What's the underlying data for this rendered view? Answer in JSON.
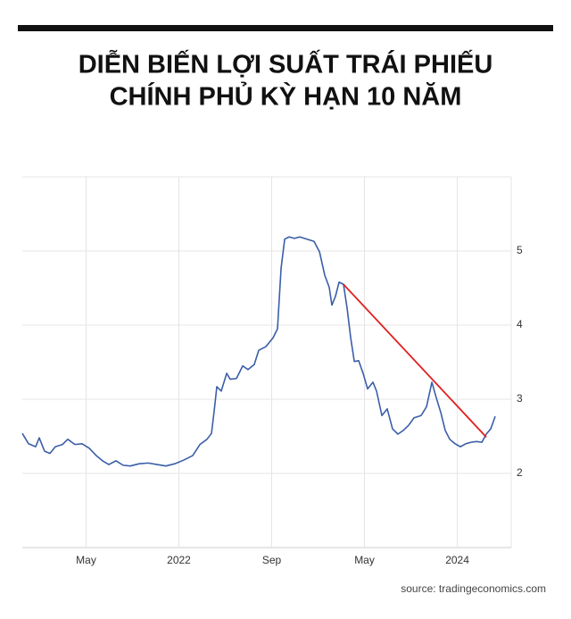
{
  "chart_data": {
    "type": "line",
    "title": [
      "DIỄN BIẾN LỢI SUẤT TRÁI PHIẾU",
      "CHÍNH PHỦ KỲ HẠN 10 NĂM"
    ],
    "source": "source: tradingeconomics.com",
    "x": [
      0.0,
      0.54,
      1.15,
      1.46,
      1.92,
      2.38,
      2.85,
      3.46,
      3.92,
      4.54,
      5.15,
      5.77,
      6.38,
      6.92,
      7.46,
      8.08,
      8.69,
      9.31,
      10.08,
      10.85,
      11.62,
      12.38,
      13.15,
      13.92,
      14.69,
      15.31,
      15.92,
      16.31,
      16.54,
      16.77,
      17.15,
      17.62,
      17.92,
      18.46,
      19.0,
      19.46,
      20.0,
      20.38,
      21.0,
      21.62,
      22.0,
      22.31,
      22.62,
      23.0,
      23.46,
      23.92,
      24.54,
      25.15,
      25.62,
      26.08,
      26.46,
      26.69,
      27.0,
      27.31,
      27.69,
      28.0,
      28.31,
      28.62,
      29.0,
      29.38,
      29.77,
      30.23,
      30.54,
      31.0,
      31.46,
      31.92,
      32.38,
      32.85,
      33.31,
      33.77,
      34.38,
      34.85,
      35.31,
      35.69,
      36.08,
      36.46,
      36.85,
      37.31,
      37.77,
      38.23,
      38.69,
      39.15,
      39.62,
      40.0,
      40.38,
      40.77
    ],
    "series": [
      {
        "color": "#3a5ea8",
        "values": [
          2.54,
          2.4,
          2.36,
          2.48,
          2.3,
          2.27,
          2.36,
          2.39,
          2.46,
          2.39,
          2.4,
          2.34,
          2.24,
          2.17,
          2.12,
          2.17,
          2.11,
          2.1,
          2.13,
          2.14,
          2.12,
          2.1,
          2.13,
          2.18,
          2.24,
          2.39,
          2.46,
          2.54,
          2.84,
          3.17,
          3.11,
          3.35,
          3.27,
          3.28,
          3.45,
          3.4,
          3.47,
          3.66,
          3.71,
          3.83,
          3.95,
          4.77,
          5.16,
          5.19,
          5.17,
          5.19,
          5.16,
          5.13,
          4.99,
          4.67,
          4.51,
          4.27,
          4.39,
          4.58,
          4.55,
          4.23,
          3.83,
          3.51,
          3.52,
          3.35,
          3.14,
          3.23,
          3.11,
          2.78,
          2.87,
          2.6,
          2.53,
          2.58,
          2.65,
          2.75,
          2.78,
          2.9,
          3.23,
          3.02,
          2.82,
          2.58,
          2.46,
          2.4,
          2.36,
          2.4,
          2.42,
          2.43,
          2.42,
          2.53,
          2.6,
          2.77
        ]
      }
    ],
    "trendline": {
      "color": "#e02020",
      "x": [
        27.69,
        40.0
      ],
      "values": [
        4.55,
        2.49
      ]
    },
    "xlim": [
      0,
      42.15
    ],
    "xticks": [
      {
        "value": 5.5,
        "label": "May"
      },
      {
        "value": 13.5,
        "label": "2022"
      },
      {
        "value": 21.5,
        "label": "Sep"
      },
      {
        "value": 29.5,
        "label": "May"
      },
      {
        "value": 37.5,
        "label": "2024"
      }
    ],
    "ylim": [
      1,
      6
    ],
    "yticks": [
      2,
      3,
      4,
      5
    ],
    "grid": true
  }
}
